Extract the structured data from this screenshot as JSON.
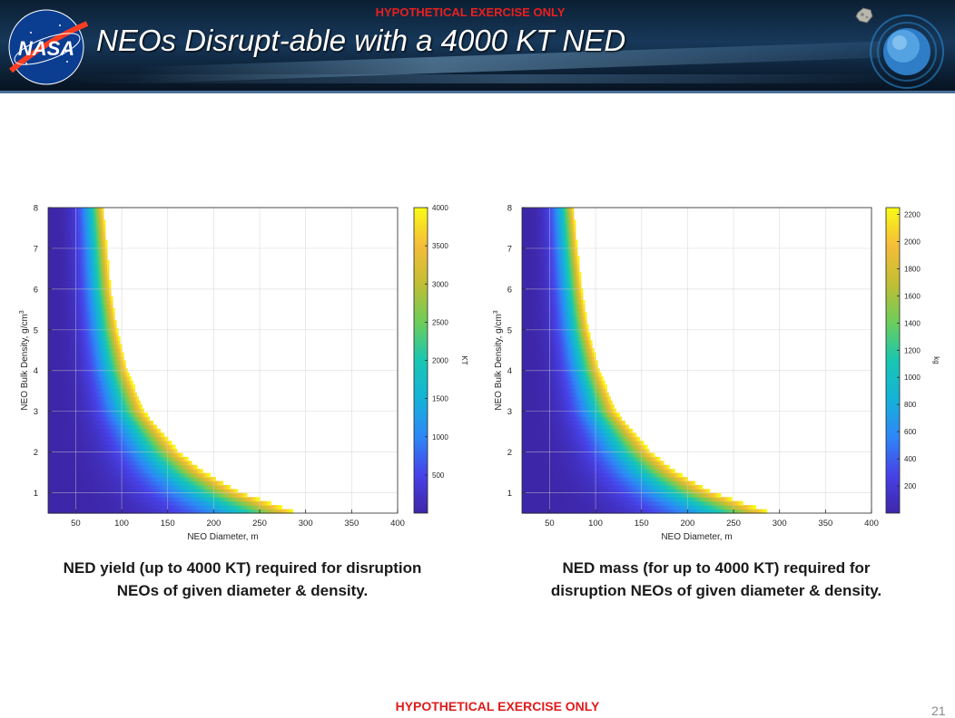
{
  "slide": {
    "title": "NEOs Disrupt-able with a 4000 KT NED",
    "exercise_label_top": "HYPOTHETICAL EXERCISE ONLY",
    "exercise_label_bottom": "HYPOTHETICAL EXERCISE ONLY",
    "page_number": "21",
    "logo_text": "NASA"
  },
  "captions": [
    {
      "line1": "NED yield (up to 4000 KT) required for disruption",
      "line2": "NEOs of given diameter & density."
    },
    {
      "line1": "NED mass (for up to 4000 KT) required for",
      "line2": "disruption NEOs of given diameter & density."
    }
  ],
  "chart_data": [
    {
      "type": "heatmap",
      "xlabel": "NEO Diameter, m",
      "ylabel": "NEO Bulk Density, g/cm",
      "ylabel_superscript": "3",
      "xlim": [
        20,
        400
      ],
      "ylim": [
        0.5,
        8
      ],
      "xticks": [
        50,
        100,
        150,
        200,
        250,
        300,
        350,
        400
      ],
      "yticks": [
        1,
        2,
        3,
        4,
        5,
        6,
        7,
        8
      ],
      "grid": true,
      "colorbar": {
        "label": "KT",
        "range": [
          0,
          4000
        ],
        "ticks": [
          500,
          1000,
          1500,
          2000,
          2500,
          3000,
          3500,
          4000
        ]
      },
      "colormap": [
        "#3e26a8",
        "#4742e8",
        "#2e87f7",
        "#14b2d8",
        "#19c7b2",
        "#6ccd5a",
        "#c1be34",
        "#f5bd39",
        "#f9fb15"
      ],
      "boundary": {
        "density": [
          8,
          7,
          6,
          5,
          4,
          3,
          2,
          1.5,
          1,
          0.5
        ],
        "max_diameter": [
          80,
          84,
          88,
          95,
          106,
          124,
          162,
          190,
          230,
          292
        ]
      }
    },
    {
      "type": "heatmap",
      "xlabel": "NEO Diameter, m",
      "ylabel": "NEO Bulk Density, g/cm",
      "ylabel_superscript": "3",
      "xlim": [
        20,
        400
      ],
      "ylim": [
        0.5,
        8
      ],
      "xticks": [
        50,
        100,
        150,
        200,
        250,
        300,
        350,
        400
      ],
      "yticks": [
        1,
        2,
        3,
        4,
        5,
        6,
        7,
        8
      ],
      "grid": true,
      "colorbar": {
        "label": "kg",
        "range": [
          0,
          2250
        ],
        "ticks": [
          200,
          400,
          600,
          800,
          1000,
          1200,
          1400,
          1600,
          1800,
          2000,
          2200
        ]
      },
      "colormap": [
        "#3e26a8",
        "#4742e8",
        "#2e87f7",
        "#14b2d8",
        "#19c7b2",
        "#6ccd5a",
        "#c1be34",
        "#f5bd39",
        "#f9fb15"
      ],
      "boundary": {
        "density": [
          8,
          7,
          6,
          5,
          4,
          3,
          2,
          1.5,
          1,
          0.5
        ],
        "max_diameter": [
          76,
          80,
          85,
          92,
          104,
          122,
          160,
          188,
          228,
          292
        ]
      }
    }
  ]
}
